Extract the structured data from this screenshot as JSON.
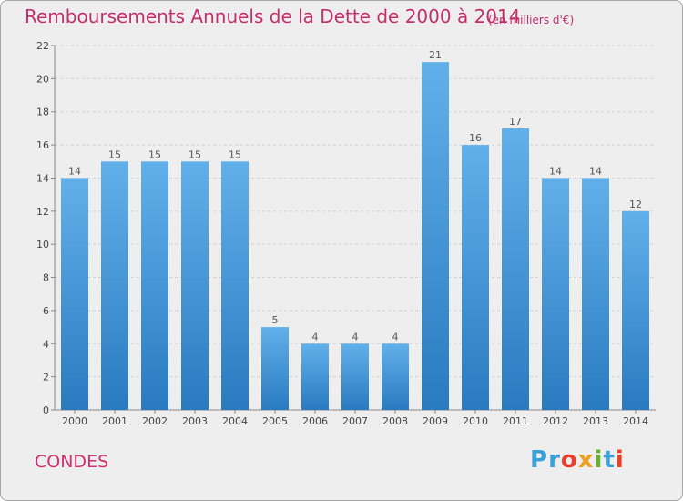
{
  "page": {
    "title": "Remboursements Annuels de la Dette de 2000 à 2014",
    "subtitle": "(en milliers d'€)",
    "city": "CONDES",
    "brand": "Proxiti",
    "colors": {
      "title": "#c0306a",
      "bar_top": "#62b0ea",
      "bar_bottom": "#2a7ac0",
      "background": "#eeeeee"
    }
  },
  "chart_data": {
    "type": "bar",
    "title": "Remboursements Annuels de la Dette de 2000 à 2014",
    "subtitle": "(en milliers d'€)",
    "categories": [
      "2000",
      "2001",
      "2002",
      "2003",
      "2004",
      "2005",
      "2006",
      "2007",
      "2008",
      "2009",
      "2010",
      "2011",
      "2012",
      "2013",
      "2014"
    ],
    "values": [
      14,
      15,
      15,
      15,
      15,
      5,
      4,
      4,
      4,
      21,
      16,
      17,
      14,
      14,
      12
    ],
    "ylim": [
      0,
      22
    ],
    "yticks": [
      0,
      2,
      4,
      6,
      8,
      10,
      12,
      14,
      16,
      18,
      20,
      22
    ],
    "grid": true,
    "legend": "none"
  }
}
